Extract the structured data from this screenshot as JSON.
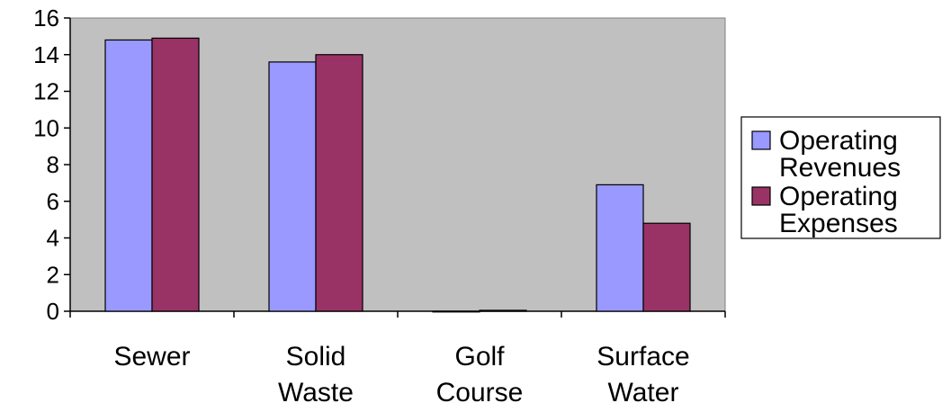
{
  "chart_data": {
    "type": "bar",
    "categories": [
      [
        "Sewer"
      ],
      [
        "Solid",
        "Waste"
      ],
      [
        "Golf",
        "Course"
      ],
      [
        "Surface",
        "Water"
      ]
    ],
    "series": [
      {
        "name": [
          "Operating",
          "Revenues"
        ],
        "values": [
          14.8,
          13.6,
          0,
          6.9
        ],
        "color": "#9999ff"
      },
      {
        "name": [
          "Operating",
          "Expenses"
        ],
        "values": [
          14.9,
          14.0,
          0.05,
          4.8
        ],
        "color": "#993366"
      }
    ],
    "yticks": [
      "0",
      "2",
      "4",
      "6",
      "8",
      "10",
      "12",
      "14",
      "16"
    ],
    "ylim": [
      0,
      16
    ],
    "plot_background": "#c0c0c0",
    "grid": false,
    "legend_position": "right"
  }
}
